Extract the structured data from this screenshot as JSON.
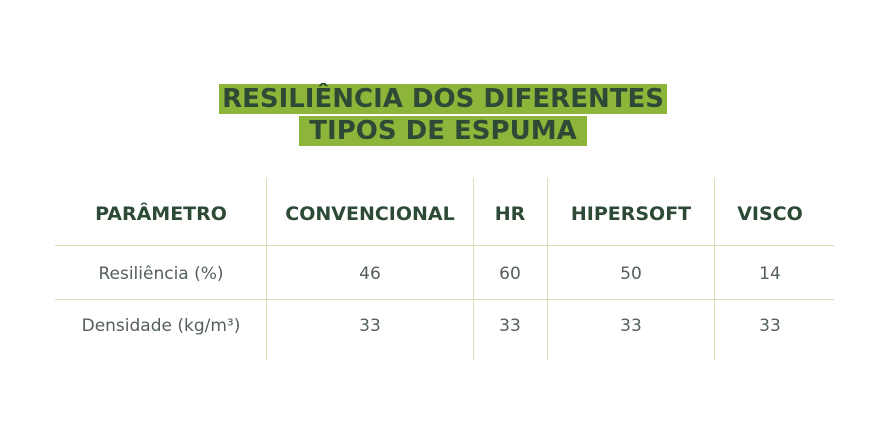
{
  "title": {
    "line1": "RESILIÊNCIA DOS DIFERENTES",
    "line2": "TIPOS DE ESPUMA"
  },
  "colors": {
    "highlight": "#8db53a",
    "heading_text": "#2c4a35",
    "cell_text": "#55605a",
    "grid_lines": "#d6e2b6"
  },
  "table": {
    "headers": [
      "PARÂMETRO",
      "CONVENCIONAL",
      "HR",
      "HIPERSOFT",
      "VISCO"
    ],
    "rows": [
      [
        "Resiliência (%)",
        "46",
        "60",
        "50",
        "14"
      ],
      [
        "Densidade (kg/m³)",
        "33",
        "33",
        "33",
        "33"
      ]
    ]
  }
}
